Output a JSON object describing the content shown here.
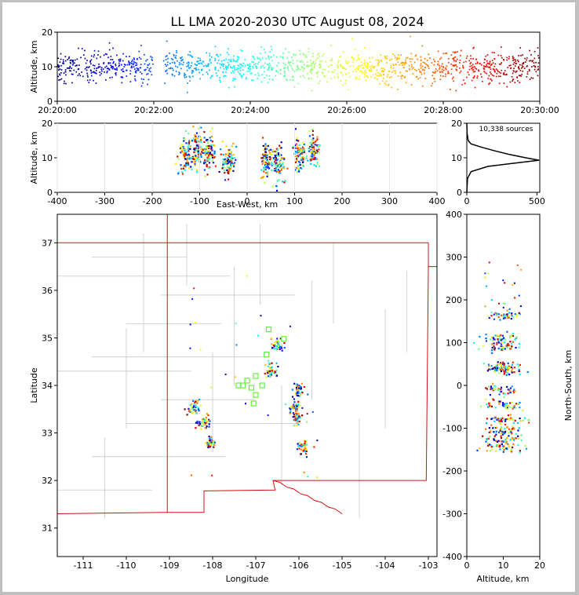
{
  "chart_data": [
    {
      "type": "scatter",
      "panel": "time-altitude",
      "title": "LL LMA 2020-2030 UTC August 08, 2024",
      "xlabel": "",
      "ylabel": "Altitude, km",
      "x_ticks": [
        "20:20:00",
        "20:22:00",
        "20:24:00",
        "20:26:00",
        "20:28:00",
        "20:30:00"
      ],
      "x_range": [
        "20:20:00",
        "20:30:00"
      ],
      "ylim": [
        0,
        20
      ],
      "y_ticks": [
        0,
        10,
        20
      ],
      "color_encoding": "time (blue to red)",
      "points_summary": "dense band of sources mostly between 5 and 15 km altitude throughout the 10 minutes"
    },
    {
      "type": "scatter",
      "panel": "east-west-altitude",
      "xlabel": "East-West, km",
      "ylabel": "Altitude, km",
      "xlim": [
        -400,
        400
      ],
      "x_ticks": [
        -400,
        -300,
        -200,
        -100,
        0,
        100,
        200,
        300,
        400
      ],
      "ylim": [
        0,
        20
      ],
      "y_ticks": [
        0,
        10,
        20
      ],
      "clusters": [
        {
          "x": -130,
          "y": 11
        },
        {
          "x": -105,
          "y": 12
        },
        {
          "x": -80,
          "y": 11
        },
        {
          "x": -40,
          "y": 9
        },
        {
          "x": 40,
          "y": 9
        },
        {
          "x": 65,
          "y": 8
        },
        {
          "x": 110,
          "y": 11
        },
        {
          "x": 140,
          "y": 12
        }
      ]
    },
    {
      "type": "line",
      "panel": "altitude-histogram",
      "annotation": "10,338 sources",
      "xlim": [
        0,
        520
      ],
      "x_ticks": [
        0,
        500
      ],
      "ylim": [
        0,
        20
      ],
      "y_ticks": [
        0,
        10,
        20
      ],
      "profile": [
        {
          "alt": 0,
          "count": 0
        },
        {
          "alt": 4,
          "count": 5
        },
        {
          "alt": 6,
          "count": 30
        },
        {
          "alt": 7.5,
          "count": 150
        },
        {
          "alt": 8.5,
          "count": 350
        },
        {
          "alt": 9.3,
          "count": 515
        },
        {
          "alt": 10,
          "count": 420
        },
        {
          "alt": 11,
          "count": 300
        },
        {
          "alt": 12,
          "count": 200
        },
        {
          "alt": 13,
          "count": 110
        },
        {
          "alt": 14,
          "count": 30
        },
        {
          "alt": 15,
          "count": 10
        },
        {
          "alt": 17,
          "count": 2
        },
        {
          "alt": 20,
          "count": 0
        }
      ]
    },
    {
      "type": "scatter",
      "panel": "plan-view",
      "xlabel": "Longitude",
      "ylabel": "Latitude",
      "xlim": [
        -111.6,
        -102.8
      ],
      "x_ticks": [
        -111,
        -110,
        -109,
        -108,
        -107,
        -106,
        -105,
        -104,
        -103
      ],
      "ylim": [
        30.4,
        37.6
      ],
      "y_ticks": [
        31,
        32,
        33,
        34,
        35,
        36,
        37
      ],
      "stations_color": "#66ee44",
      "stations": [
        {
          "lon": -107.0,
          "lat": 34.2
        },
        {
          "lon": -107.2,
          "lat": 34.1
        },
        {
          "lon": -107.3,
          "lat": 34.0
        },
        {
          "lon": -107.4,
          "lat": 34.0
        },
        {
          "lon": -107.1,
          "lat": 33.95
        },
        {
          "lon": -106.85,
          "lat": 34.0
        },
        {
          "lon": -107.0,
          "lat": 33.8
        },
        {
          "lon": -107.05,
          "lat": 33.62
        },
        {
          "lon": -106.75,
          "lat": 34.65
        },
        {
          "lon": -106.35,
          "lat": 34.98
        },
        {
          "lon": -106.7,
          "lat": 35.18
        }
      ],
      "lightning_clusters": [
        {
          "lon": -108.2,
          "lat": 33.2
        },
        {
          "lon": -108.05,
          "lat": 32.8
        },
        {
          "lon": -108.45,
          "lat": 33.5
        },
        {
          "lon": -106.0,
          "lat": 33.9
        },
        {
          "lon": -106.1,
          "lat": 33.55
        },
        {
          "lon": -106.05,
          "lat": 33.3
        },
        {
          "lon": -105.9,
          "lat": 32.7
        },
        {
          "lon": -106.5,
          "lat": 34.85
        },
        {
          "lon": -106.65,
          "lat": 34.3
        }
      ]
    },
    {
      "type": "scatter",
      "panel": "altitude-north-south",
      "xlabel": "Altitude, km",
      "ylabel": "North-South, km",
      "xlim": [
        0,
        20
      ],
      "x_ticks": [
        0,
        10,
        20
      ],
      "ylim": [
        -400,
        400
      ],
      "y_ticks": [
        -400,
        -300,
        -200,
        -100,
        0,
        100,
        200,
        300,
        400
      ],
      "rows_ns_km": [
        165,
        110,
        90,
        45,
        35,
        -10,
        -45,
        -80,
        -105,
        -125,
        -145
      ]
    }
  ]
}
